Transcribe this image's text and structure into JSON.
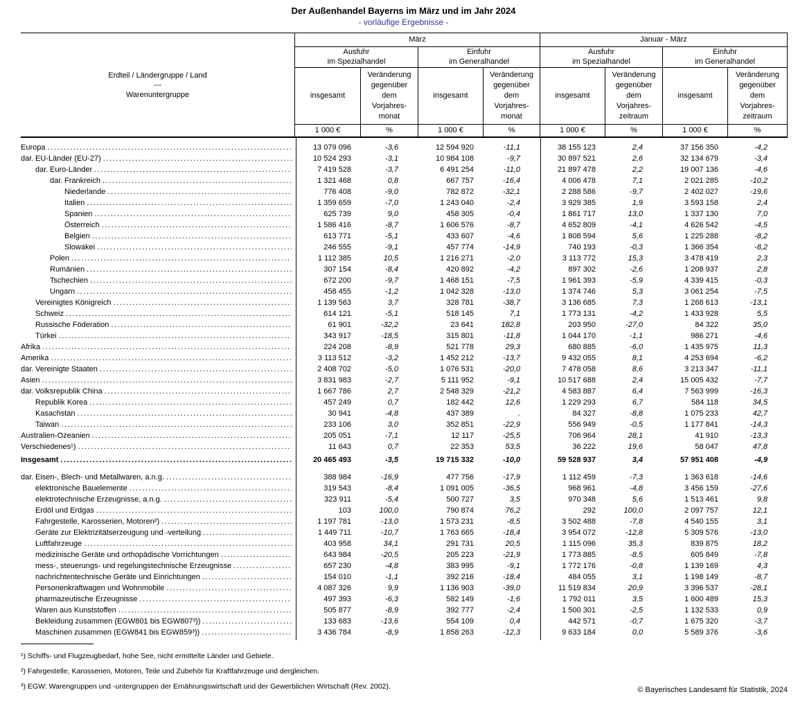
{
  "title": "Der Außenhandel Bayerns im März und im Jahr 2024",
  "subtitle": "- vorläufige Ergebnisse -",
  "table": {
    "stub_header": "Erdteil / Ländergruppe / Land\n---\nWarenuntergruppe",
    "periods": [
      "März",
      "Januar - März"
    ],
    "groups": [
      {
        "label": "Ausfuhr\nim Spezialhandel",
        "change": "Veränderung\ngegenüber\ndem\nVorjahres-\nmonat"
      },
      {
        "label": "Einfuhr\nim Generalhandel",
        "change": "Veränderung\ngegenüber\ndem\nVorjahres-\nmonat"
      },
      {
        "label": "Ausfuhr\nim Spezialhandel",
        "change": "Veränderung\ngegenüber\ndem\nVorjahres-\nzeitraum"
      },
      {
        "label": "Einfuhr\nim Generalhandel",
        "change": "Veränderung\ngegenüber\ndem\nVorjahres-\nzeitraum"
      }
    ],
    "total_label": "insgesamt",
    "units": {
      "amount": "1 000 €",
      "percent": "%"
    },
    "rows": [
      {
        "label": "Europa",
        "prefix": "",
        "level": 0,
        "bold": false,
        "gap": "",
        "vals": [
          "13 079 096",
          "-3,6",
          "12 594 920",
          "-11,1",
          "38 155 123",
          "2,4",
          "37 156 350",
          "-4,2"
        ]
      },
      {
        "label": "EU-Länder (EU-27)",
        "prefix": "dar.",
        "level": 1,
        "bold": false,
        "gap": "",
        "vals": [
          "10 524 293",
          "-3,1",
          "10 984 108",
          "-9,7",
          "30 897 521",
          "2,6",
          "32 134 679",
          "-3,4"
        ]
      },
      {
        "label": "Euro-Länder",
        "prefix": "dar.",
        "level": 2,
        "bold": false,
        "gap": "",
        "vals": [
          "7 419 528",
          "-3,7",
          "6 491 254",
          "-11,0",
          "21 897 478",
          "2,2",
          "19 007 136",
          "-4,6"
        ]
      },
      {
        "label": "Frankreich",
        "prefix": "dar.",
        "level": 3,
        "bold": false,
        "gap": "",
        "vals": [
          "1 321 468",
          "0,8",
          "667 757",
          "-16,4",
          "4 006 478",
          "7,1",
          "2 021 285",
          "-10,2"
        ]
      },
      {
        "label": "Niederlande",
        "prefix": "",
        "level": 3,
        "bold": false,
        "gap": "",
        "vals": [
          "776 408",
          "-9,0",
          "782 872",
          "-32,1",
          "2 288 586",
          "-9,7",
          "2 402 027",
          "-19,6"
        ]
      },
      {
        "label": "Italien",
        "prefix": "",
        "level": 3,
        "bold": false,
        "gap": "",
        "vals": [
          "1 359 659",
          "-7,0",
          "1 243 040",
          "-2,4",
          "3 929 385",
          "1,9",
          "3 593 158",
          "2,4"
        ]
      },
      {
        "label": "Spanien",
        "prefix": "",
        "level": 3,
        "bold": false,
        "gap": "",
        "vals": [
          "625 739",
          "9,0",
          "458 305",
          "-0,4",
          "1 861 717",
          "13,0",
          "1 337 130",
          "7,0"
        ]
      },
      {
        "label": "Österreich",
        "prefix": "",
        "level": 3,
        "bold": false,
        "gap": "",
        "vals": [
          "1 586 416",
          "-8,7",
          "1 606 576",
          "-8,7",
          "4 652 809",
          "-4,1",
          "4 626 542",
          "-4,5"
        ]
      },
      {
        "label": "Belgien",
        "prefix": "",
        "level": 3,
        "bold": false,
        "gap": "",
        "vals": [
          "613 771",
          "-5,1",
          "433 607",
          "-4,6",
          "1 808 594",
          "5,6",
          "1 225 288",
          "-8,2"
        ]
      },
      {
        "label": "Slowakei",
        "prefix": "",
        "level": 3,
        "bold": false,
        "gap": "",
        "vals": [
          "246 555",
          "-9,1",
          "457 774",
          "-14,9",
          "740 193",
          "-0,3",
          "1 366 354",
          "-8,2"
        ]
      },
      {
        "label": "Polen",
        "prefix": "",
        "level": 2,
        "bold": false,
        "gap": "",
        "vals": [
          "1 112 385",
          "10,5",
          "1 216 271",
          "-2,0",
          "3 113 772",
          "15,3",
          "3 478 419",
          "2,3"
        ]
      },
      {
        "label": "Rumänien",
        "prefix": "",
        "level": 2,
        "bold": false,
        "gap": "",
        "vals": [
          "307 154",
          "-8,4",
          "420 892",
          "-4,2",
          "897 302",
          "-2,6",
          "1 208 937",
          "2,8"
        ]
      },
      {
        "label": "Tschechien",
        "prefix": "",
        "level": 2,
        "bold": false,
        "gap": "",
        "vals": [
          "672 200",
          "-9,7",
          "1 468 151",
          "-7,5",
          "1 961 393",
          "-5,9",
          "4 339 415",
          "-0,3"
        ]
      },
      {
        "label": "Ungarn",
        "prefix": "",
        "level": 2,
        "bold": false,
        "gap": "",
        "vals": [
          "458 455",
          "-1,2",
          "1 042 328",
          "-13,0",
          "1 374 746",
          "5,3",
          "3 061 254",
          "-7,5"
        ]
      },
      {
        "label": "Vereinigtes Königreich",
        "prefix": "",
        "level": 1,
        "bold": false,
        "gap": "",
        "vals": [
          "1 139 563",
          "3,7",
          "328 781",
          "-38,7",
          "3 136 685",
          "7,3",
          "1 268 613",
          "-13,1"
        ]
      },
      {
        "label": "Schweiz",
        "prefix": "",
        "level": 1,
        "bold": false,
        "gap": "",
        "vals": [
          "614 121",
          "-5,1",
          "518 145",
          "7,1",
          "1 773 131",
          "-4,2",
          "1 433 928",
          "5,5"
        ]
      },
      {
        "label": "Russische Föderation",
        "prefix": "",
        "level": 1,
        "bold": false,
        "gap": "",
        "vals": [
          "61 901",
          "-32,2",
          "23 641",
          "182,8",
          "203 950",
          "-27,0",
          "84 322",
          "35,0"
        ]
      },
      {
        "label": "Türkei",
        "prefix": "",
        "level": 1,
        "bold": false,
        "gap": "",
        "vals": [
          "343 917",
          "-18,5",
          "315 801",
          "-11,8",
          "1 044 170",
          "-1,1",
          "986 271",
          "-4,6"
        ]
      },
      {
        "label": "Afrika",
        "prefix": "",
        "level": 0,
        "bold": false,
        "gap": "",
        "vals": [
          "224 208",
          "-8,9",
          "521 778",
          "29,3",
          "680 885",
          "-6,0",
          "1 435 975",
          "11,3"
        ]
      },
      {
        "label": "Amerika",
        "prefix": "",
        "level": 0,
        "bold": false,
        "gap": "",
        "vals": [
          "3 113 512",
          "-3,2",
          "1 452 212",
          "-13,7",
          "9 432 055",
          "8,1",
          "4 253 694",
          "-6,2"
        ]
      },
      {
        "label": "Vereinigte Staaten",
        "prefix": "dar.",
        "level": 1,
        "bold": false,
        "gap": "",
        "vals": [
          "2 408 702",
          "-5,0",
          "1 076 531",
          "-20,0",
          "7 478 058",
          "8,6",
          "3 213 347",
          "-11,1"
        ]
      },
      {
        "label": "Asien",
        "prefix": "",
        "level": 0,
        "bold": false,
        "gap": "",
        "vals": [
          "3 831 983",
          "-2,7",
          "5 111 952",
          "-9,1",
          "10 517 688",
          "2,4",
          "15 005 432",
          "-7,7"
        ]
      },
      {
        "label": "Volksrepublik China",
        "prefix": "dar.",
        "level": 1,
        "bold": false,
        "gap": "",
        "vals": [
          "1 667 786",
          "2,7",
          "2 548 329",
          "-21,2",
          "4 583 887",
          "6,4",
          "7 563 999",
          "-16,3"
        ]
      },
      {
        "label": "Republik Korea",
        "prefix": "",
        "level": 1,
        "bold": false,
        "gap": "",
        "vals": [
          "457 249",
          "0,7",
          "182 442",
          "12,6",
          "1 229 293",
          "6,7",
          "584 118",
          "34,5"
        ]
      },
      {
        "label": "Kasachstan",
        "prefix": "",
        "level": 1,
        "bold": false,
        "gap": "",
        "vals": [
          "30 941",
          "-4,8",
          "437 389",
          ".",
          "84 327",
          "-8,8",
          "1 075 233",
          "42,7"
        ]
      },
      {
        "label": "Taiwan",
        "prefix": "",
        "level": 1,
        "bold": false,
        "gap": "",
        "vals": [
          "233 106",
          "3,0",
          "352 851",
          "-22,9",
          "556 949",
          "-0,5",
          "1 177 841",
          "-14,3"
        ]
      },
      {
        "label": "Australien-Ozeanien",
        "prefix": "",
        "level": 0,
        "bold": false,
        "gap": "",
        "vals": [
          "205 051",
          "-7,1",
          "12 117",
          "-25,5",
          "706 964",
          "28,1",
          "41 910",
          "-13,3"
        ]
      },
      {
        "label": "Verschiedenes¹)",
        "prefix": "",
        "level": 0,
        "bold": false,
        "gap": "",
        "vals": [
          "11 643",
          "0,7",
          "22 353",
          "53,5",
          "36 222",
          "19,6",
          "58 047",
          "47,8"
        ]
      },
      {
        "label": "Insgesamt",
        "prefix": "",
        "level": 0,
        "bold": true,
        "gap": "gap-total",
        "vals": [
          "20 465 493",
          "-3,5",
          "19 715 332",
          "-10,0",
          "59 528 937",
          "3,4",
          "57 951 408",
          "-4,9"
        ]
      },
      {
        "label": "Eisen-, Blech- und Metallwaren, a.n.g.",
        "prefix": "dar.",
        "level": 1,
        "bold": false,
        "gap": "gap-goods",
        "vals": [
          "388 984",
          "-16,9",
          "477 756",
          "-17,9",
          "1 112 459",
          "-7,3",
          "1 363 618",
          "-14,6"
        ]
      },
      {
        "label": "elektronische Bauelemente",
        "prefix": "",
        "level": 1,
        "bold": false,
        "gap": "",
        "vals": [
          "319 543",
          "-8,4",
          "1 091 005",
          "-36,5",
          "968 961",
          "-4,8",
          "3 456 159",
          "-27,6"
        ]
      },
      {
        "label": "elektrotechnische Erzeugnisse, a.n.g.",
        "prefix": "",
        "level": 1,
        "bold": false,
        "gap": "",
        "vals": [
          "323 911",
          "-5,4",
          "500 727",
          "3,5",
          "970 348",
          "5,6",
          "1 513 461",
          "9,8"
        ]
      },
      {
        "label": "Erdöl und Erdgas",
        "prefix": "",
        "level": 1,
        "bold": false,
        "gap": "",
        "vals": [
          "103",
          "100,0",
          "790 874",
          "76,2",
          "292",
          "100,0",
          "2 097 757",
          "12,1"
        ]
      },
      {
        "label": "Fahrgestelle, Karosserien, Motoren²)",
        "prefix": "",
        "level": 1,
        "bold": false,
        "gap": "",
        "vals": [
          "1 197 781",
          "-13,0",
          "1 573 231",
          "-8,5",
          "3 502 488",
          "-7,8",
          "4 540 155",
          "3,1"
        ]
      },
      {
        "label": "Geräte zur Elektrizitätserzeugung und -verteilung",
        "prefix": "",
        "level": 1,
        "bold": false,
        "gap": "",
        "vals": [
          "1 449 711",
          "-10,7",
          "1 763 665",
          "-18,4",
          "3 954 072",
          "-12,8",
          "5 309 576",
          "-13,0"
        ]
      },
      {
        "label": "Luftfahrzeuge",
        "prefix": "",
        "level": 1,
        "bold": false,
        "gap": "",
        "vals": [
          "403 958",
          "34,1",
          "291 731",
          "20,5",
          "1 115 096",
          "35,3",
          "839 875",
          "18,2"
        ]
      },
      {
        "label": "medizinische Geräte und orthopädische Vorrichtungen",
        "prefix": "",
        "level": 1,
        "bold": false,
        "gap": "",
        "vals": [
          "643 984",
          "-20,5",
          "205 223",
          "-21,9",
          "1 773 885",
          "-8,5",
          "605 849",
          "-7,8"
        ]
      },
      {
        "label": "mess-, steuerungs- und regelungstechnische Erzeugnisse",
        "prefix": "",
        "level": 1,
        "bold": false,
        "gap": "",
        "vals": [
          "657 230",
          "-4,8",
          "383 995",
          "-9,1",
          "1 772 176",
          "-0,8",
          "1 139 169",
          "4,3"
        ]
      },
      {
        "label": "nachrichtentechnische Geräte und Einrichtungen",
        "prefix": "",
        "level": 1,
        "bold": false,
        "gap": "",
        "vals": [
          "154 010",
          "-1,1",
          "392 216",
          "-18,4",
          "484 055",
          "3,1",
          "1 198 149",
          "-8,7"
        ]
      },
      {
        "label": "Personenkraftwagen und Wohnmobile",
        "prefix": "",
        "level": 1,
        "bold": false,
        "gap": "",
        "vals": [
          "4 087 326",
          "9,9",
          "1 136 903",
          "-39,0",
          "11 519 834",
          "20,9",
          "3 396 537",
          "-28,1"
        ]
      },
      {
        "label": "pharmazeutische Erzeugnisse",
        "prefix": "",
        "level": 1,
        "bold": false,
        "gap": "",
        "vals": [
          "497 393",
          "-6,3",
          "582 149",
          "-1,6",
          "1 792 011",
          "3,5",
          "1 600 489",
          "15,3"
        ]
      },
      {
        "label": "Waren aus Kunststoffen",
        "prefix": "",
        "level": 1,
        "bold": false,
        "gap": "",
        "vals": [
          "505 877",
          "-8,9",
          "392 777",
          "-2,4",
          "1 500 301",
          "-2,5",
          "1 132 533",
          "0,9"
        ]
      },
      {
        "label": "Bekleidung zusammen (EGW801 bis EGW807³))",
        "prefix": "",
        "level": 1,
        "bold": false,
        "gap": "",
        "vals": [
          "133 683",
          "-13,6",
          "554 109",
          "0,4",
          "442 571",
          "-0,7",
          "1 675 320",
          "-3,7"
        ]
      },
      {
        "label": "Maschinen zusammen (EGW841 bis EGW859³))",
        "prefix": "",
        "level": 1,
        "bold": false,
        "gap": "",
        "vals": [
          "3 436 784",
          "-8,9",
          "1 858 263",
          "-12,3",
          "9 633 184",
          "0,0",
          "5 589 376",
          "-3,6"
        ]
      }
    ]
  },
  "footnotes": [
    "¹) Schiffs- und Flugzeugbedarf, hohe See, nicht ermittelte Länder und Gebiete.",
    "²) Fahrgestelle, Karosserien, Motoren, Teile und Zubehör für Kraftfahrzeuge und dergleichen.",
    "³) EGW: Warengruppen und -untergruppen der Ernährungswirtschaft und der Gewerblichen Wirtschaft (Rev. 2002)."
  ],
  "copyright": "© Bayerisches Landesamt für Statistik, 2024"
}
